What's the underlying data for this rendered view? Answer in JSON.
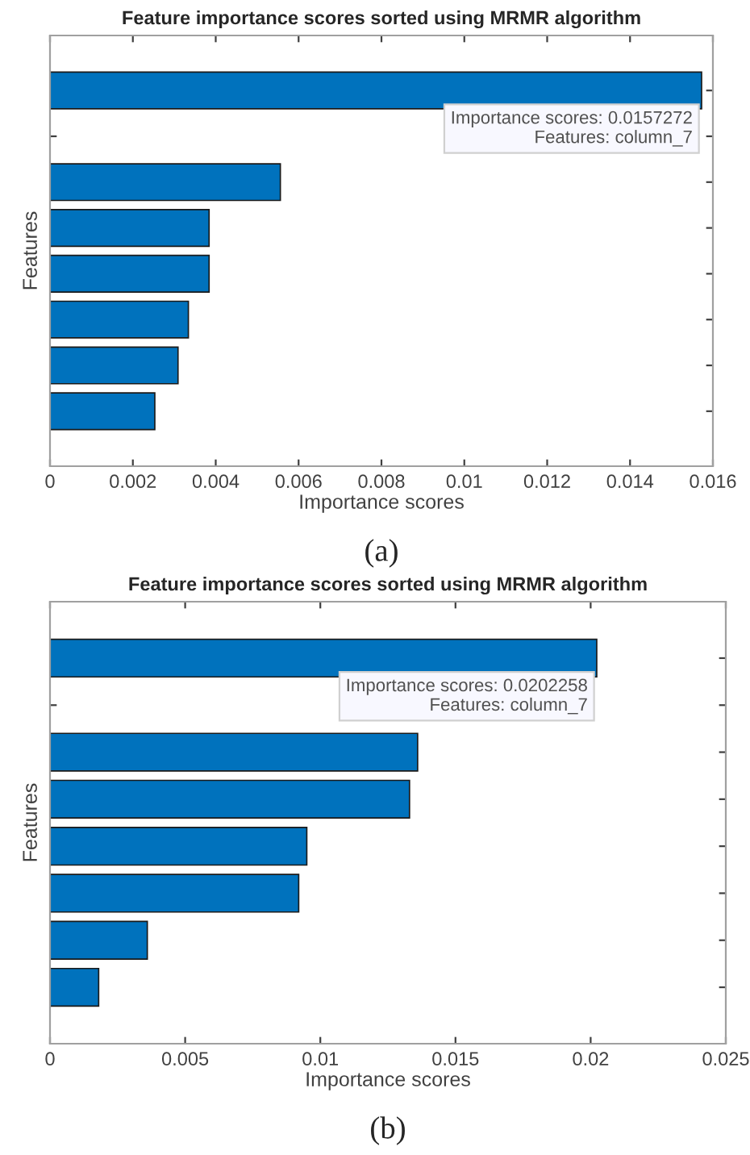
{
  "chart_data": [
    {
      "type": "bar",
      "orientation": "horizontal",
      "title": "Feature importance scores sorted using MRMR algorithm",
      "xlabel": "Importance scores",
      "ylabel": "Features",
      "categories": [
        null,
        null,
        null,
        null,
        null,
        null,
        null,
        null
      ],
      "values": [
        0.0157272,
        null,
        0.00556,
        0.00384,
        0.00384,
        0.00334,
        0.00309,
        0.00253
      ],
      "color": "#0072bd",
      "xlim": [
        0,
        0.016
      ],
      "xticks": [
        0,
        0.002,
        0.004,
        0.006,
        0.008,
        0.01,
        0.012,
        0.014,
        0.016
      ],
      "tick_labels": "x",
      "annotations": [
        "Importance scores: 0.0157272\nFeatures: column_7",
        "(a)"
      ]
    },
    {
      "type": "bar",
      "orientation": "horizontal",
      "title": "Feature importance scores sorted using MRMR algorithm",
      "xlabel": "Importance scores",
      "ylabel": "Features",
      "categories": [
        null,
        null,
        null,
        null,
        null,
        null,
        null,
        null
      ],
      "values": [
        0.0202258,
        null,
        0.0136,
        0.0133,
        0.0095,
        0.0092,
        0.0036,
        0.0018
      ],
      "color": "#0072bd",
      "xlim": [
        0,
        0.025
      ],
      "xticks": [
        0,
        0.005,
        0.01,
        0.015,
        0.02,
        0.025
      ],
      "tick_labels": "x",
      "annotations": [
        "Importance scores: 0.0202258\nFeatures: column_7",
        "(b)"
      ]
    }
  ]
}
